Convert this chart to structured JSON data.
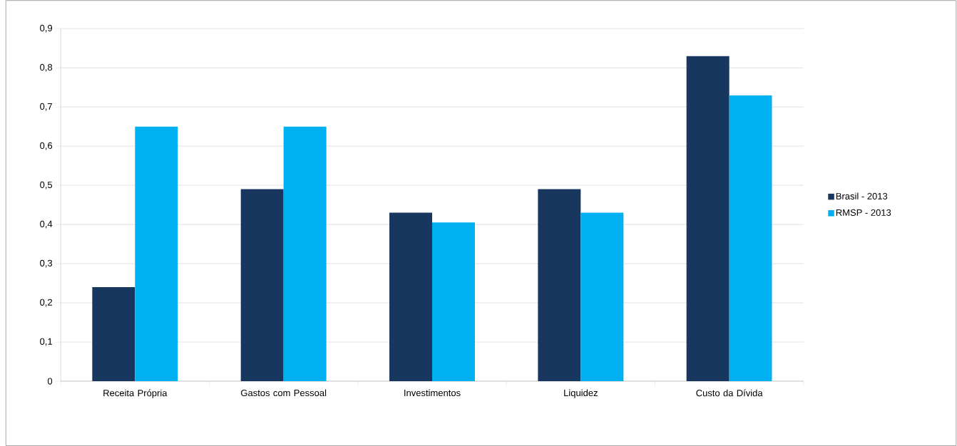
{
  "chart_data": {
    "type": "bar",
    "categories": [
      "Receita Própria",
      "Gastos com Pessoal",
      "Investimentos",
      "Liquidez",
      "Custo da Dívida"
    ],
    "series": [
      {
        "name": "Brasil - 2013",
        "color": "#17375e",
        "values": [
          0.24,
          0.49,
          0.43,
          0.49,
          0.83
        ]
      },
      {
        "name": "RMSP - 2013",
        "color": "#00b0f0",
        "values": [
          0.65,
          0.65,
          0.405,
          0.43,
          0.73
        ]
      }
    ],
    "ylim": [
      0,
      0.9
    ],
    "yticks": [
      0,
      {
        "value": 0.1,
        "label": "0,1"
      },
      {
        "value": 0.2,
        "label": "0,2"
      },
      {
        "value": 0.3,
        "label": "0,3"
      },
      {
        "value": 0.4,
        "label": "0,4"
      },
      {
        "value": 0.5,
        "label": "0,5"
      },
      {
        "value": 0.6,
        "label": "0,6"
      },
      {
        "value": 0.7,
        "label": "0,7"
      },
      {
        "value": 0.8,
        "label": "0,8"
      },
      {
        "value": 0.9,
        "label": "0,9"
      }
    ],
    "grid": "y",
    "legend": "right"
  }
}
